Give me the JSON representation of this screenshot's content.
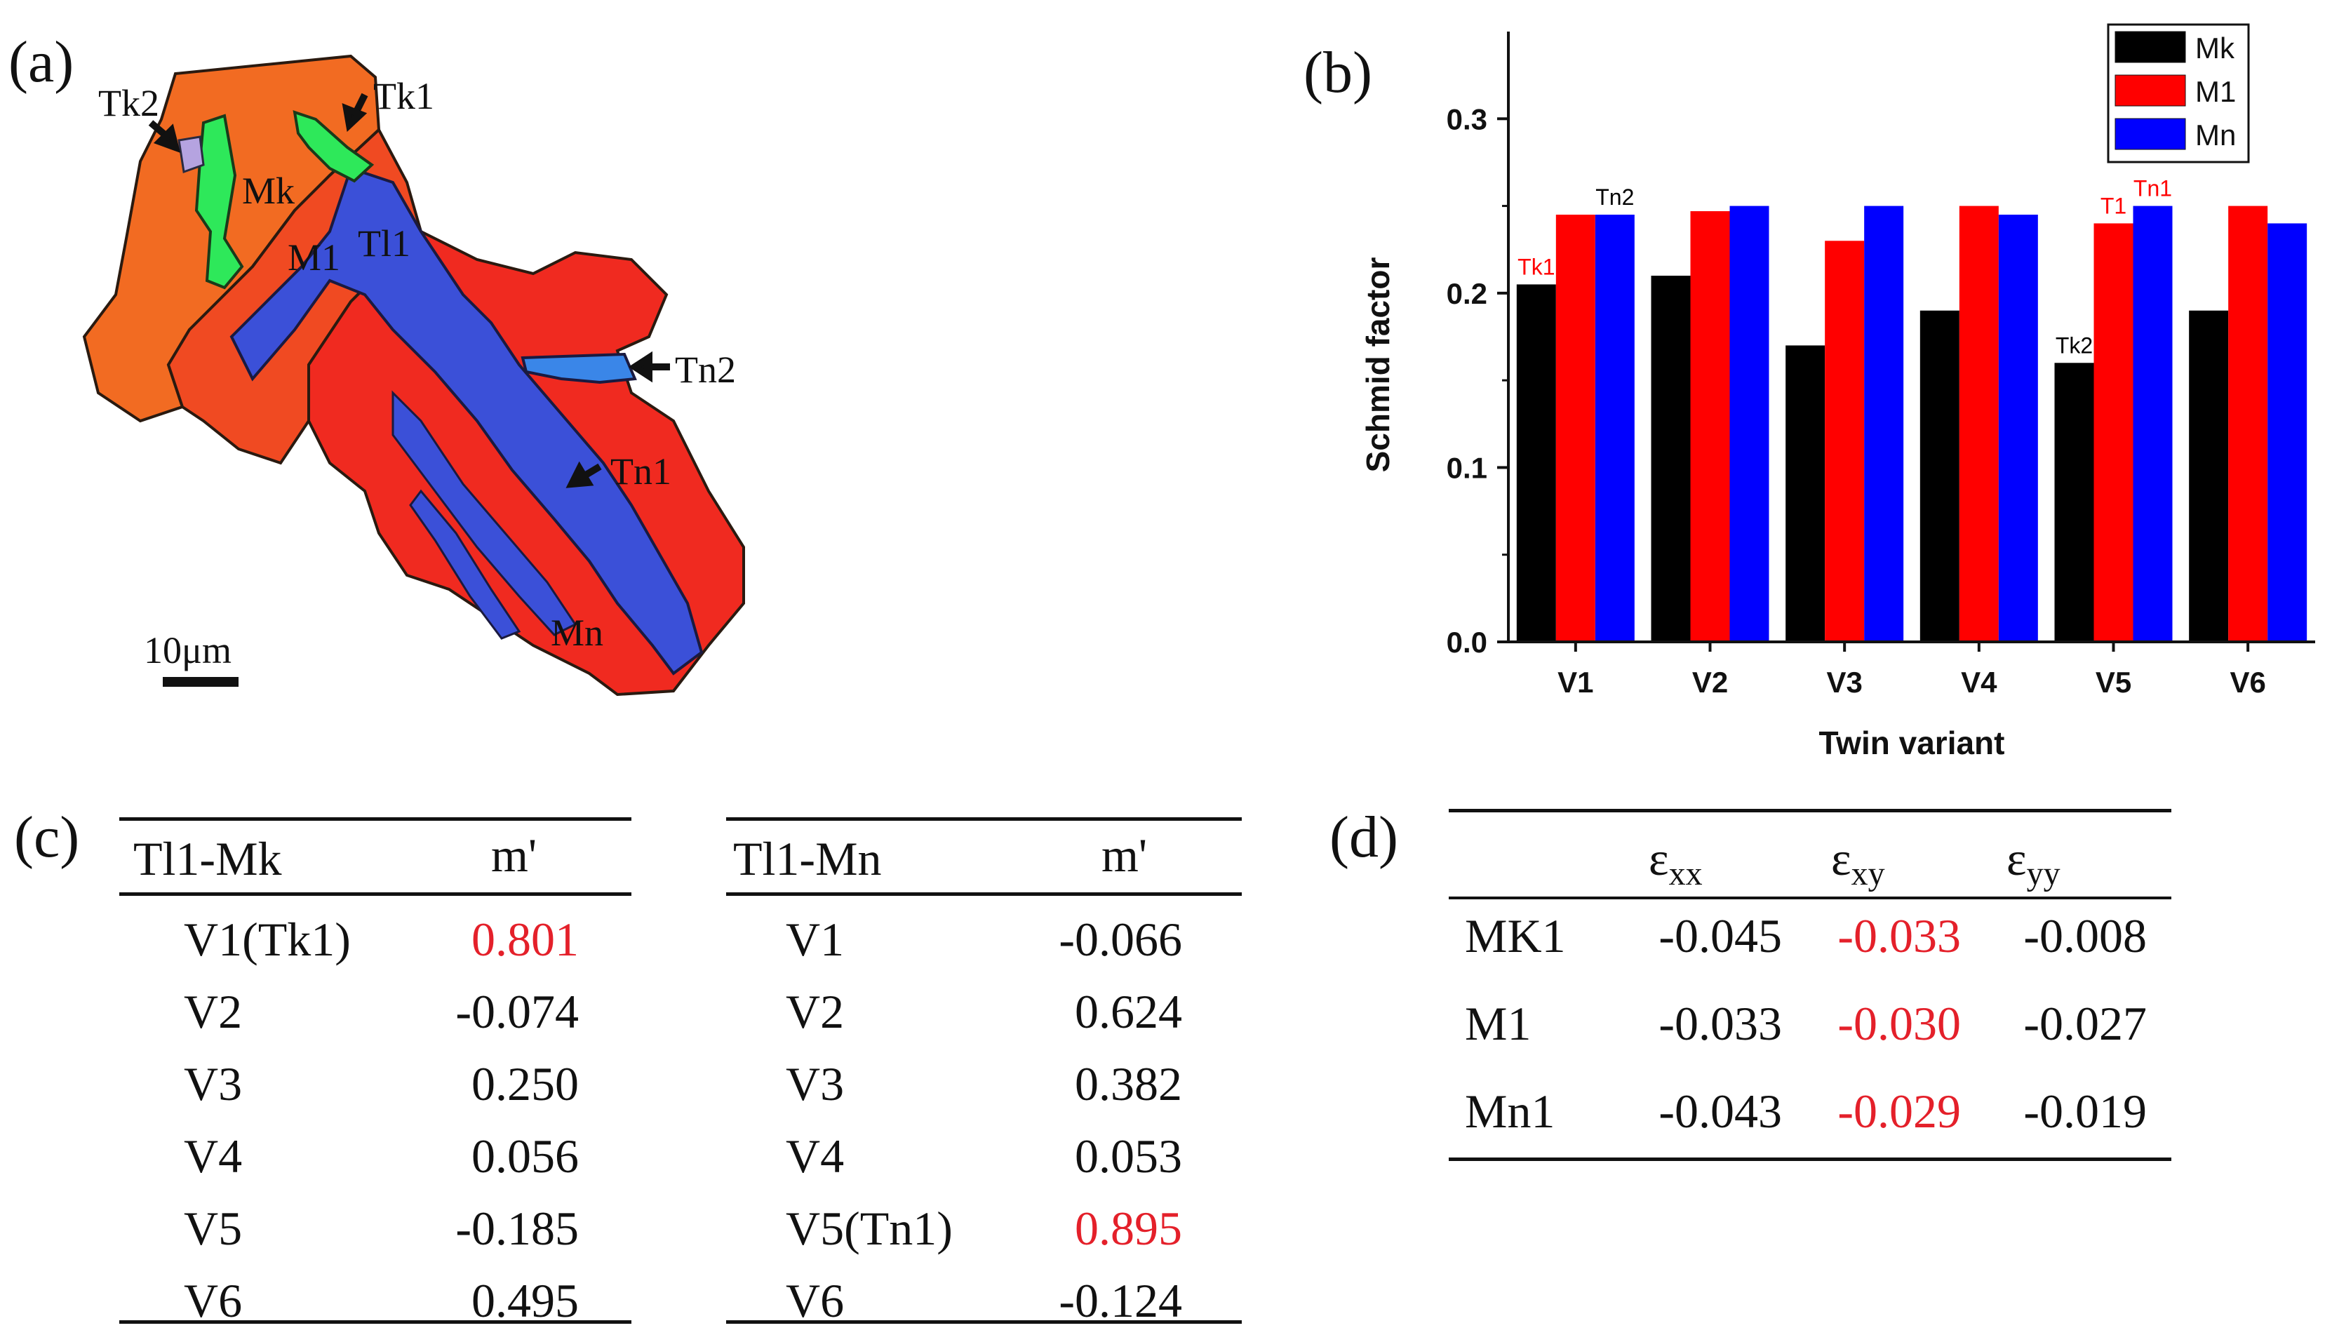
{
  "panels": {
    "a": "(a)",
    "b": "(b)",
    "c": "(c)",
    "d": "(d)"
  },
  "ebsd_map": {
    "labels": {
      "tk2": "Tk2",
      "tk1": "Tk1",
      "mk": "Mk",
      "m1": "M1",
      "tl1": "Tl1",
      "tn2": "Tn2",
      "tn1": "Tn1",
      "mn": "Mn"
    },
    "scale_bar": "10μm",
    "colors": {
      "orange": "#f26b22",
      "red": "#f02a20",
      "blue": "#3b50d8",
      "green": "#2ee85a",
      "lightblue": "#3a86e8",
      "lavender": "#b5a3e0"
    }
  },
  "chart_data": {
    "type": "bar",
    "title": "",
    "xlabel": "Twin variant",
    "ylabel": "Schmid factor",
    "categories": [
      "V1",
      "V2",
      "V3",
      "V4",
      "V5",
      "V6"
    ],
    "ylim": [
      0.0,
      0.35
    ],
    "yticks": [
      "0.0",
      "0.1",
      "0.2",
      "0.3"
    ],
    "series": [
      {
        "name": "Mk",
        "color": "#000000",
        "values": [
          0.205,
          0.21,
          0.17,
          0.19,
          0.16,
          0.19
        ]
      },
      {
        "name": "M1",
        "color": "#ff0000",
        "values": [
          0.245,
          0.247,
          0.23,
          0.25,
          0.24,
          0.25
        ]
      },
      {
        "name": "Mn",
        "color": "#0000ff",
        "values": [
          0.245,
          0.25,
          0.25,
          0.245,
          0.25,
          0.24
        ]
      }
    ],
    "legend_position": "top-right",
    "annotations": [
      {
        "text": "Tk1",
        "series": 0,
        "category": 0,
        "color": "#ff0000"
      },
      {
        "text": "Tn2",
        "series": 2,
        "category": 0,
        "color": "#000000"
      },
      {
        "text": "Tk2",
        "series": 0,
        "category": 4,
        "color": "#000000"
      },
      {
        "text": "T1",
        "series": 1,
        "category": 4,
        "color": "#ff0000"
      },
      {
        "text": "Tn1",
        "series": 2,
        "category": 4,
        "color": "#ff0000"
      }
    ]
  },
  "table_c1": {
    "header": [
      "Tl1-Mk",
      "m'"
    ],
    "rows": [
      {
        "variant": "V1(Tk1)",
        "value": "0.801",
        "highlight": true
      },
      {
        "variant": "V2",
        "value": "-0.074",
        "highlight": false
      },
      {
        "variant": "V3",
        "value": "0.250",
        "highlight": false
      },
      {
        "variant": "V4",
        "value": "0.056",
        "highlight": false
      },
      {
        "variant": "V5",
        "value": "-0.185",
        "highlight": false
      },
      {
        "variant": "V6",
        "value": "0.495",
        "highlight": false
      }
    ]
  },
  "table_c2": {
    "header": [
      "Tl1-Mn",
      "m'"
    ],
    "rows": [
      {
        "variant": "V1",
        "value": "-0.066",
        "highlight": false
      },
      {
        "variant": "V2",
        "value": "0.624",
        "highlight": false
      },
      {
        "variant": "V3",
        "value": "0.382",
        "highlight": false
      },
      {
        "variant": "V4",
        "value": "0.053",
        "highlight": false
      },
      {
        "variant": "V5(Tn1)",
        "value": "0.895",
        "highlight": true
      },
      {
        "variant": "V6",
        "value": "-0.124",
        "highlight": false
      }
    ]
  },
  "table_d": {
    "header": [
      {
        "sym": "ε",
        "sub": "xx"
      },
      {
        "sym": "ε",
        "sub": "xy"
      },
      {
        "sym": "ε",
        "sub": "yy"
      }
    ],
    "rows": [
      {
        "name": "MK1",
        "xx": "-0.045",
        "xy": "-0.033",
        "yy": "-0.008"
      },
      {
        "name": "M1",
        "xx": "-0.033",
        "xy": "-0.030",
        "yy": "-0.027"
      },
      {
        "name": "Mn1",
        "xx": "-0.043",
        "xy": "-0.029",
        "yy": "-0.019"
      }
    ]
  }
}
